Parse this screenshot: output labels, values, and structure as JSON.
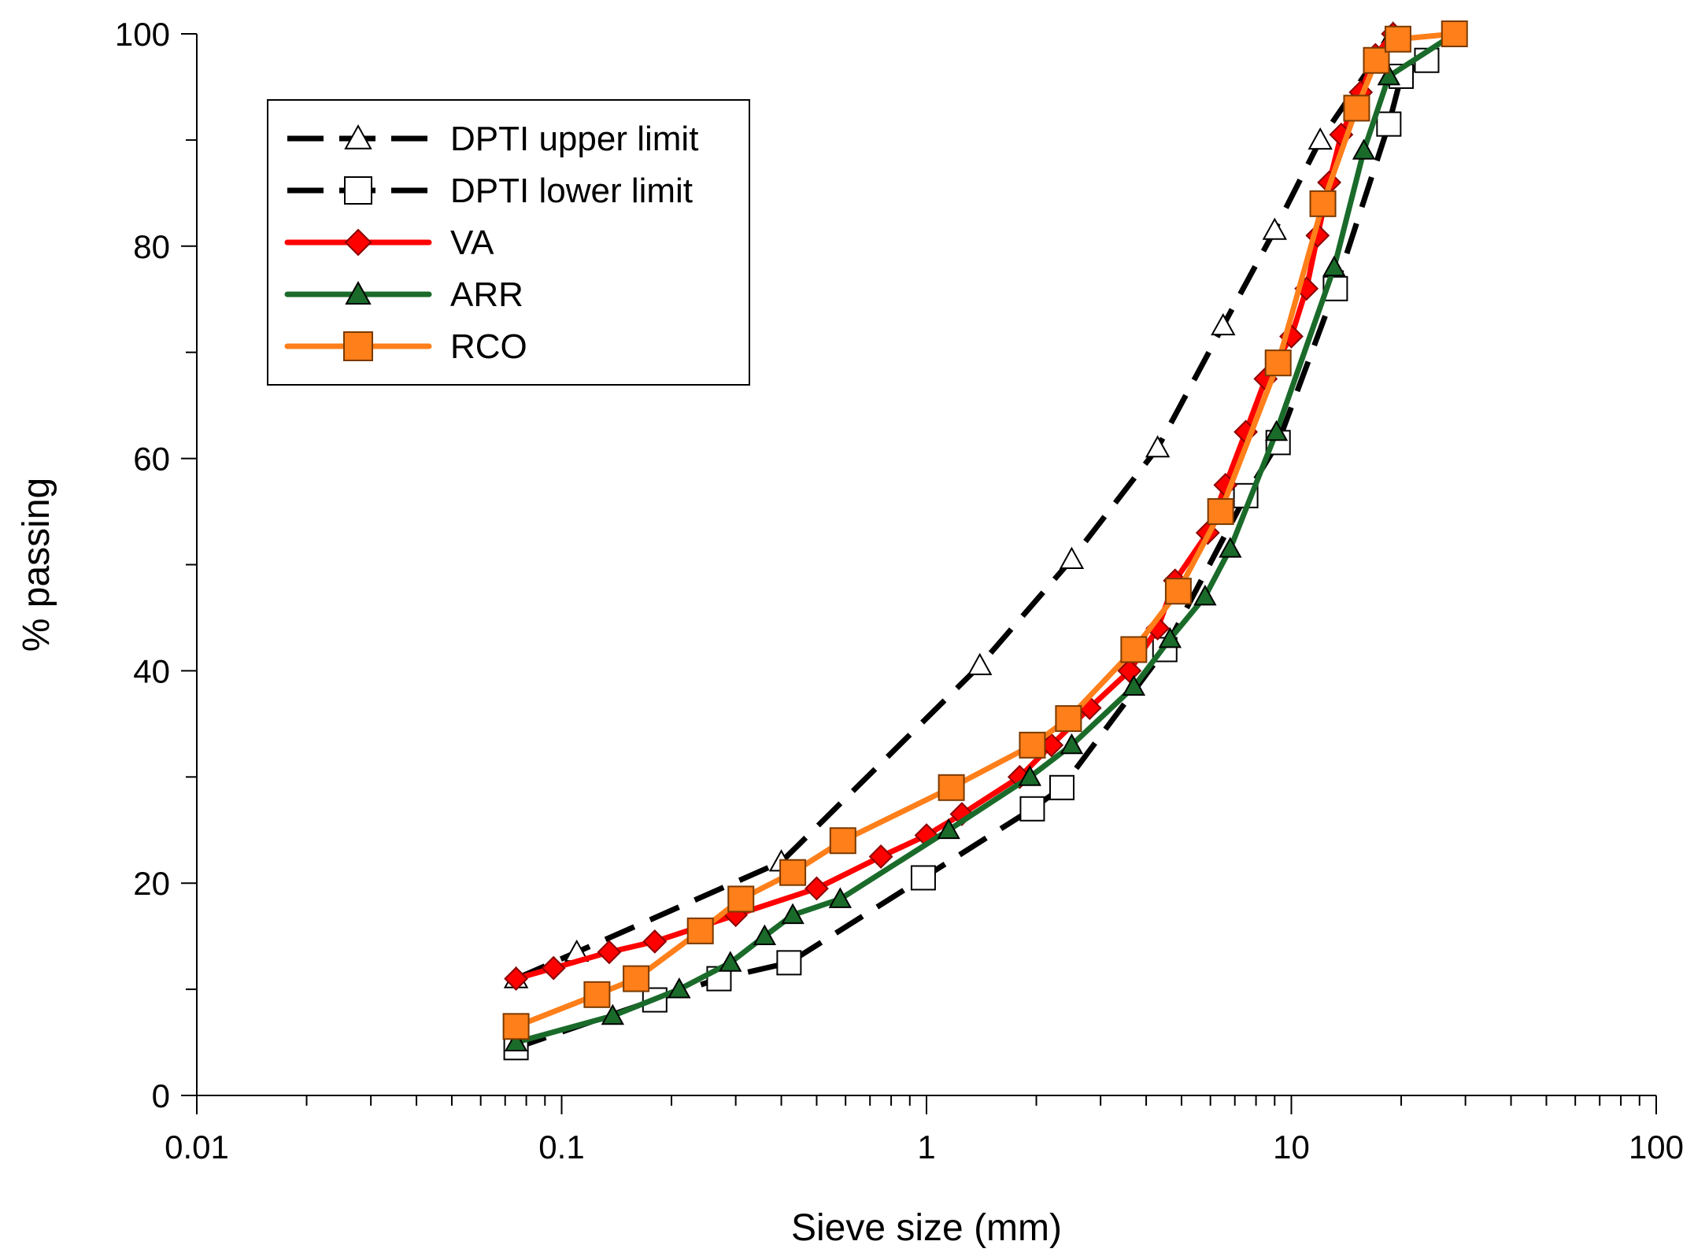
{
  "chart_data": {
    "type": "line",
    "title": "",
    "xlabel": "Sieve size (mm)",
    "ylabel": "% passing",
    "xscale": "log",
    "xlim": [
      0.01,
      100
    ],
    "ylim": [
      0,
      100
    ],
    "x_ticks": [
      {
        "value": 0.01,
        "label": "0.01"
      },
      {
        "value": 0.1,
        "label": "0.1"
      },
      {
        "value": 1,
        "label": "1"
      },
      {
        "value": 10,
        "label": "10"
      },
      {
        "value": 100,
        "label": "100"
      }
    ],
    "y_ticks": [
      {
        "value": 0,
        "label": "0"
      },
      {
        "value": 20,
        "label": "20"
      },
      {
        "value": 40,
        "label": "40"
      },
      {
        "value": 60,
        "label": "60"
      },
      {
        "value": 80,
        "label": "80"
      },
      {
        "value": 100,
        "label": "100"
      }
    ],
    "y_minor_ticks": [
      10,
      30,
      50,
      70,
      90
    ],
    "legend_position": "top-left",
    "series": [
      {
        "name": "DPTI upper limit",
        "color": "#000000",
        "line": "dashed",
        "marker": "triangle-open",
        "x": [
          0.075,
          0.11,
          0.4,
          1.4,
          2.5,
          4.3,
          6.5,
          9,
          12,
          19
        ],
        "values": [
          11,
          13.5,
          22,
          40.5,
          50.5,
          61,
          72.5,
          81.5,
          90,
          100
        ]
      },
      {
        "name": "DPTI lower limit",
        "color": "#000000",
        "line": "dashed",
        "marker": "square-open",
        "x": [
          0.075,
          0.18,
          0.27,
          0.42,
          0.98,
          1.95,
          2.35,
          4.5,
          7.5,
          9.2,
          13.2,
          18.5,
          20,
          23.5
        ],
        "values": [
          4.5,
          9,
          11,
          12.5,
          20.5,
          27,
          29,
          42,
          56.5,
          61.5,
          76,
          91.5,
          96,
          97.5
        ]
      },
      {
        "name": "VA",
        "color": "#ff0000",
        "line": "solid",
        "marker": "diamond",
        "x": [
          0.075,
          0.095,
          0.135,
          0.18,
          0.3,
          0.5,
          0.75,
          1.0,
          1.25,
          1.8,
          2.2,
          2.8,
          3.6,
          4.3,
          4.8,
          5.9,
          6.6,
          7.5,
          8.5,
          10,
          11,
          11.8,
          12.7,
          13.7,
          15.5,
          17,
          19
        ],
        "values": [
          11,
          12,
          13.5,
          14.5,
          17,
          19.5,
          22.5,
          24.5,
          26.5,
          30,
          33,
          36.5,
          40,
          44,
          48.5,
          53,
          57.5,
          62.5,
          67.5,
          71.5,
          76,
          81,
          86,
          90.5,
          94.5,
          98,
          100
        ]
      },
      {
        "name": "ARR",
        "color": "#1a6b2a",
        "line": "solid",
        "marker": "triangle",
        "x": [
          0.075,
          0.138,
          0.21,
          0.29,
          0.36,
          0.43,
          0.58,
          1.15,
          1.92,
          2.5,
          3.7,
          4.65,
          5.8,
          6.8,
          9.1,
          13.1,
          15.8,
          18.5,
          28
        ],
        "values": [
          5,
          7.5,
          10,
          12.5,
          15,
          17,
          18.5,
          25,
          30,
          33,
          38.5,
          43,
          47,
          51.5,
          62.5,
          78,
          89,
          96,
          100
        ]
      },
      {
        "name": "RCO",
        "color": "#ff7f1a",
        "line": "solid",
        "marker": "square",
        "x": [
          0.075,
          0.125,
          0.16,
          0.24,
          0.31,
          0.43,
          0.59,
          1.17,
          1.95,
          2.45,
          3.7,
          4.9,
          6.4,
          9.2,
          12.2,
          15.1,
          17.1,
          19.6,
          28
        ],
        "values": [
          6.5,
          9.5,
          11,
          15.5,
          18.5,
          21,
          24,
          29,
          33,
          35.5,
          42,
          47.5,
          55,
          69,
          84,
          93,
          97.5,
          99.5,
          100
        ]
      }
    ]
  }
}
